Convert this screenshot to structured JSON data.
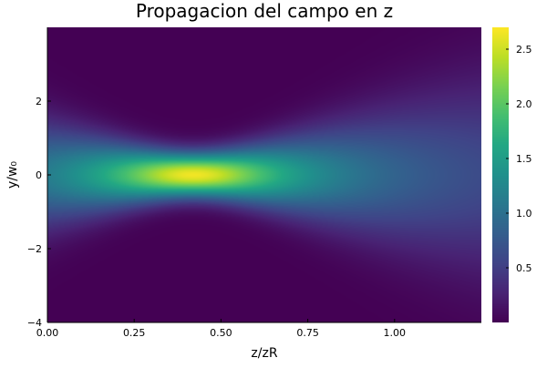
{
  "chart_data": {
    "type": "heatmap",
    "title": "Propagacion del campo en z",
    "xlabel": "z/zR",
    "ylabel": "y/w₀",
    "xlim": [
      0.0,
      1.25
    ],
    "ylim": [
      -4,
      4
    ],
    "x_ticks": [
      0.0,
      0.25,
      0.5,
      0.75,
      1.0
    ],
    "x_tick_labels": [
      "0.00",
      "0.25",
      "0.50",
      "0.75",
      "1.00"
    ],
    "y_ticks": [
      -4,
      -2,
      0,
      2
    ],
    "y_tick_labels": [
      "−4",
      "−2",
      "0",
      "2"
    ],
    "colorscale": "viridis",
    "colorbar": {
      "range": [
        0,
        2.7
      ],
      "ticks": [
        0.5,
        1.0,
        1.5,
        2.0,
        2.5
      ],
      "tick_labels": [
        "0.5",
        "1.0",
        "1.5",
        "2.0",
        "2.5"
      ]
    },
    "field": {
      "description_of_values": "intensity of a focused Gaussian beam vs propagation distance z/zR and transverse position y/w0",
      "peak_intensity": 2.65,
      "focus_z": 0.42,
      "input_intensity_at_z0": 1.2,
      "output_intensity_at_zmax": 0.45
    },
    "grid": false
  }
}
